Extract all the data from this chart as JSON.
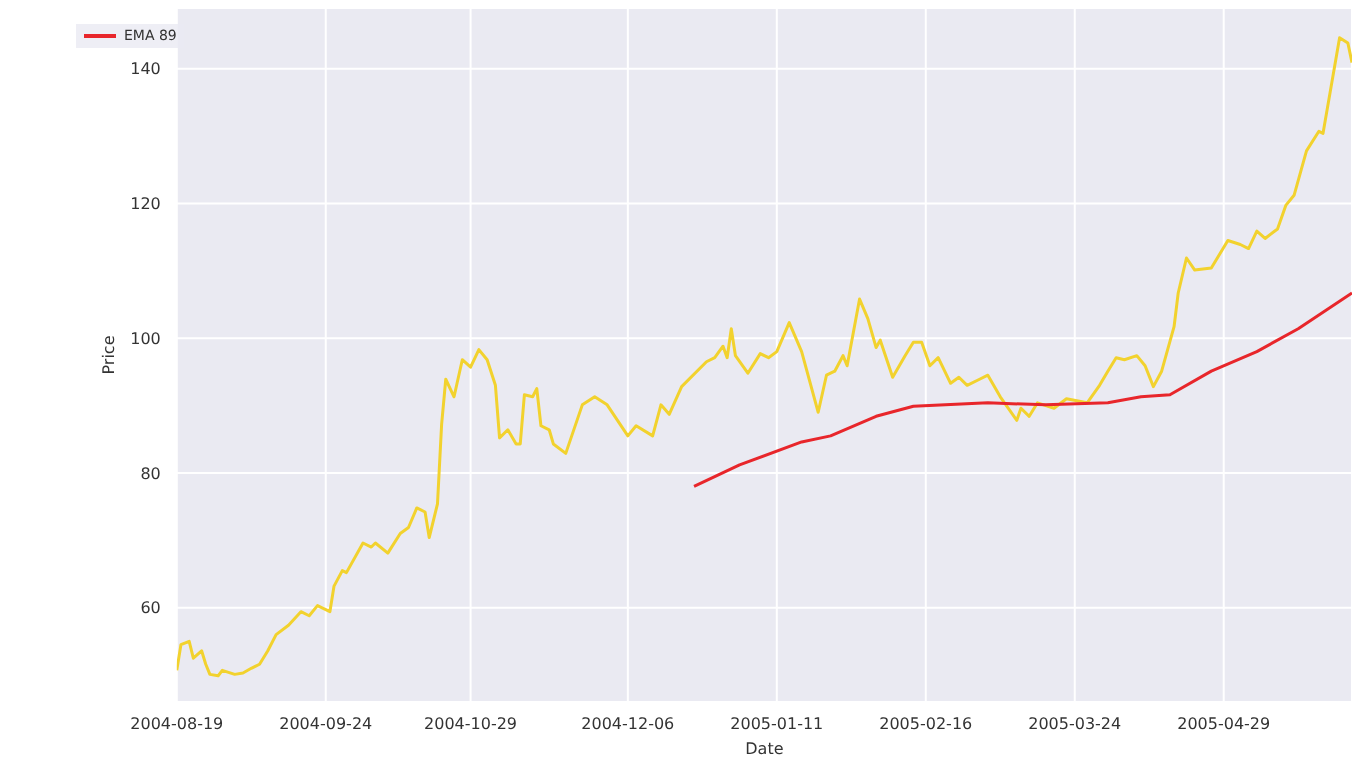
{
  "chart_data": {
    "type": "line",
    "xlabel": "Date",
    "ylabel": "Price",
    "xlim": [
      "2004-08-19",
      "2005-05-30"
    ],
    "xticks": [
      "2004-08-19",
      "2004-09-24",
      "2004-10-29",
      "2004-12-06",
      "2005-01-11",
      "2005-02-16",
      "2005-03-24",
      "2005-04-29"
    ],
    "ylim": [
      46,
      149
    ],
    "yticks": [
      60,
      80,
      100,
      120,
      140
    ],
    "grid": true,
    "legend": "top left",
    "marker": "none",
    "line_style": "solid",
    "series": [
      {
        "color": "#f2d22e",
        "x": [
          "2004-08-19",
          "2004-08-20",
          "2004-08-22",
          "2004-08-23",
          "2004-08-25",
          "2004-08-26",
          "2004-08-27",
          "2004-08-29",
          "2004-08-30",
          "2004-09-02",
          "2004-09-04",
          "2004-09-06",
          "2004-09-08",
          "2004-09-10",
          "2004-09-12",
          "2004-09-15",
          "2004-09-18",
          "2004-09-20",
          "2004-09-22",
          "2004-09-25",
          "2004-09-26",
          "2004-09-28",
          "2004-09-29",
          "2004-10-03",
          "2004-10-05",
          "2004-10-06",
          "2004-10-09",
          "2004-10-12",
          "2004-10-14",
          "2004-10-16",
          "2004-10-18",
          "2004-10-19",
          "2004-10-21",
          "2004-10-22",
          "2004-10-23",
          "2004-10-25",
          "2004-10-27",
          "2004-10-29",
          "2004-10-31",
          "2004-11-02",
          "2004-11-04",
          "2004-11-05",
          "2004-11-07",
          "2004-11-09",
          "2004-11-10",
          "2004-11-11",
          "2004-11-13",
          "2004-11-14",
          "2004-11-15",
          "2004-11-17",
          "2004-11-18",
          "2004-11-21",
          "2004-11-25",
          "2004-11-28",
          "2004-12-01",
          "2004-12-06",
          "2004-12-08",
          "2004-12-12",
          "2004-12-14",
          "2004-12-16",
          "2004-12-19",
          "2004-12-25",
          "2004-12-27",
          "2004-12-29",
          "2004-12-30",
          "2004-12-31",
          "2005-01-01",
          "2005-01-04",
          "2005-01-07",
          "2005-01-09",
          "2005-01-11",
          "2005-01-14",
          "2005-01-17",
          "2005-01-21",
          "2005-01-23",
          "2005-01-25",
          "2005-01-27",
          "2005-01-28",
          "2005-01-31",
          "2005-02-02",
          "2005-02-04",
          "2005-02-05",
          "2005-02-08",
          "2005-02-11",
          "2005-02-13",
          "2005-02-15",
          "2005-02-17",
          "2005-02-19",
          "2005-02-22",
          "2005-02-24",
          "2005-02-26",
          "2005-03-01",
          "2005-03-03",
          "2005-03-06",
          "2005-03-10",
          "2005-03-11",
          "2005-03-13",
          "2005-03-15",
          "2005-03-19",
          "2005-03-22",
          "2005-03-27",
          "2005-03-30",
          "2005-04-01",
          "2005-04-03",
          "2005-04-05",
          "2005-04-08",
          "2005-04-10",
          "2005-04-12",
          "2005-04-14",
          "2005-04-17",
          "2005-04-18",
          "2005-04-20",
          "2005-04-22",
          "2005-04-26",
          "2005-04-30",
          "2005-05-03",
          "2005-05-05",
          "2005-05-07",
          "2005-05-09",
          "2005-05-12",
          "2005-05-14",
          "2005-05-16",
          "2005-05-19",
          "2005-05-22",
          "2005-05-23",
          "2005-05-27",
          "2005-05-29",
          "2005-05-30"
        ],
        "values": [
          50.7,
          54.5,
          55,
          52.5,
          53.6,
          51.6,
          50.1,
          49.9,
          50.7,
          50.1,
          50.3,
          51,
          51.6,
          53.6,
          56,
          57.4,
          59.4,
          58.8,
          60.3,
          59.4,
          63.2,
          65.5,
          65.2,
          69.6,
          69,
          69.6,
          68.1,
          71,
          71.9,
          74.8,
          74.2,
          70.4,
          75.4,
          87.2,
          93.9,
          91.3,
          96.8,
          95.7,
          98.3,
          96.8,
          93,
          85.2,
          86.4,
          84.3,
          84.3,
          91.6,
          91.3,
          92.5,
          87,
          86.4,
          84.3,
          82.9,
          90.1,
          91.3,
          90.1,
          85.5,
          87,
          85.5,
          90.1,
          88.7,
          92.8,
          96.5,
          97.1,
          98.8,
          97.1,
          101.4,
          97.4,
          94.8,
          97.7,
          97.1,
          98,
          102.3,
          98,
          89,
          94.5,
          95.1,
          97.4,
          95.9,
          105.8,
          102.9,
          98.6,
          99.7,
          94.2,
          97.4,
          99.4,
          99.4,
          95.9,
          97.1,
          93.3,
          94.2,
          93,
          93.9,
          94.5,
          91.3,
          87.8,
          89.6,
          88.4,
          90.4,
          89.6,
          91,
          90.4,
          93,
          95.1,
          97.1,
          96.8,
          97.4,
          95.9,
          92.8,
          95.1,
          101.7,
          106.7,
          111.9,
          110.1,
          110.4,
          114.5,
          113.9,
          113.3,
          115.9,
          114.8,
          116.2,
          119.7,
          121.2,
          127.8,
          130.7,
          130.4,
          144.6,
          143.8,
          140.9
        ]
      },
      {
        "name": "EMA 89",
        "color": "#e8262b",
        "x": [
          "2004-12-22",
          "2005-01-02",
          "2005-01-17",
          "2005-01-24",
          "2005-02-04",
          "2005-02-13",
          "2005-03-03",
          "2005-03-17",
          "2005-04-01",
          "2005-04-09",
          "2005-04-16",
          "2005-04-26",
          "2005-05-07",
          "2005-05-17",
          "2005-05-30"
        ],
        "values": [
          78,
          81.2,
          84.6,
          85.5,
          88.4,
          89.9,
          90.4,
          90.1,
          90.4,
          91.3,
          91.6,
          95.1,
          98,
          101.4,
          106.7
        ]
      }
    ]
  }
}
